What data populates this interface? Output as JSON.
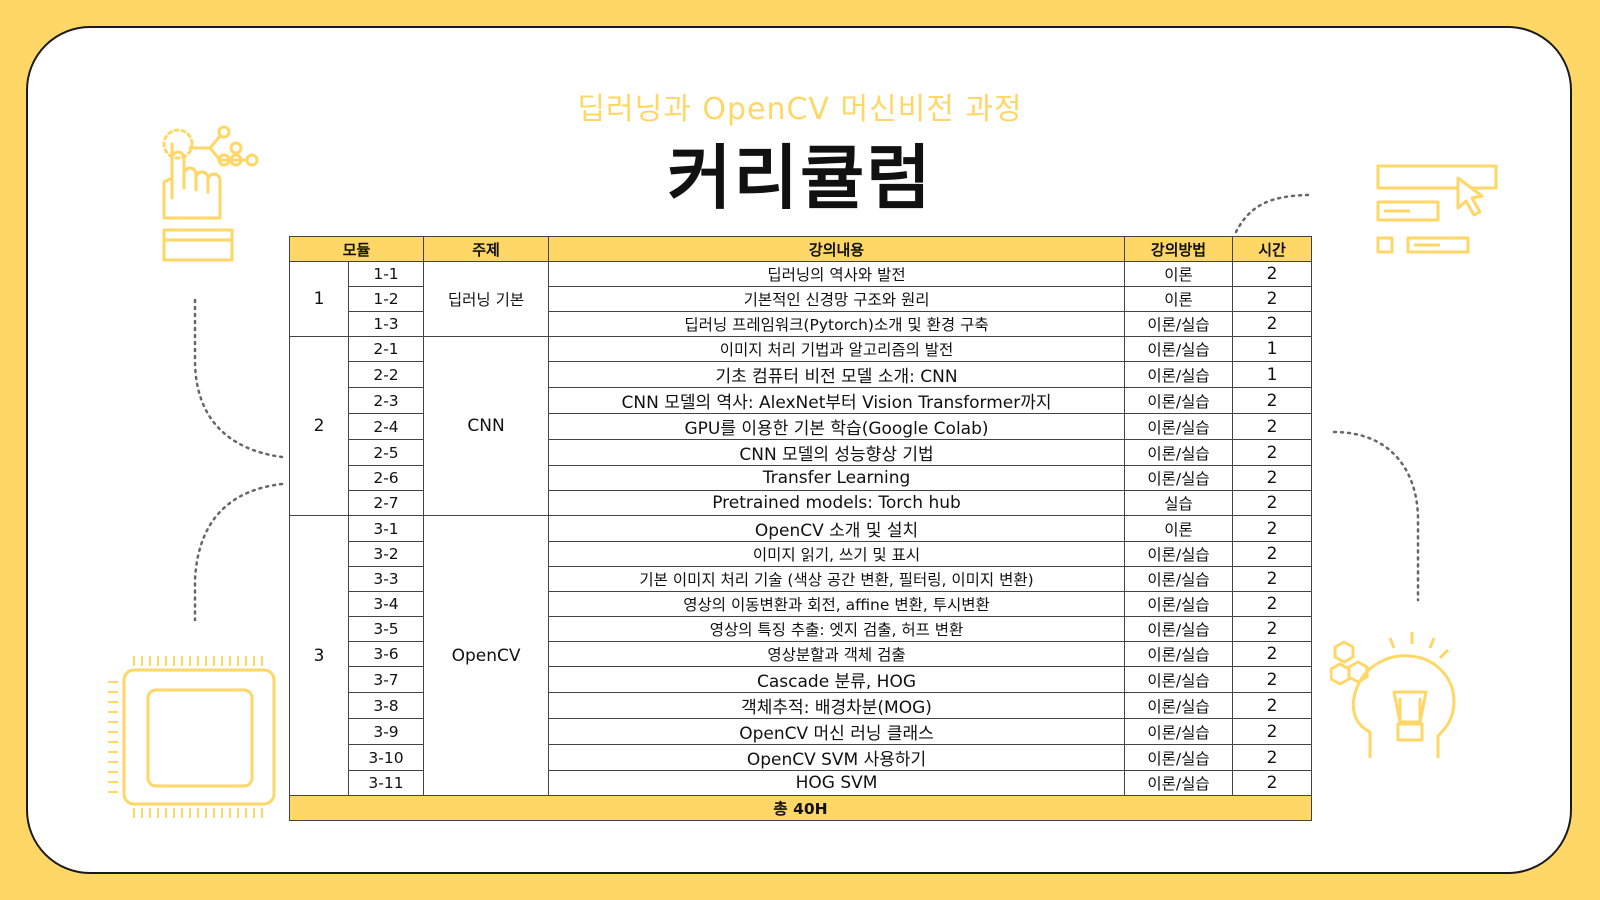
{
  "header": {
    "subtitle": "딥러닝과 OpenCV 머신비전 과정",
    "title": "커리큘럼"
  },
  "table": {
    "headers": {
      "module": "모듈",
      "topic": "주제",
      "content": "강의내용",
      "method": "강의방법",
      "hours": "시간"
    },
    "modules": [
      {
        "module": "1",
        "topic": "딥러닝 기본",
        "rows": [
          {
            "id": "1-1",
            "content": "딥러닝의 역사와 발전",
            "method": "이론",
            "hours": "2"
          },
          {
            "id": "1-2",
            "content": "기본적인 신경망 구조와 원리",
            "method": "이론",
            "hours": "2"
          },
          {
            "id": "1-3",
            "content": "딥러닝 프레임워크(Pytorch)소개 및 환경 구축",
            "method": "이론/실습",
            "hours": "2"
          }
        ]
      },
      {
        "module": "2",
        "topic": "CNN",
        "rows": [
          {
            "id": "2-1",
            "content": "이미지 처리 기법과 알고리즘의 발전",
            "method": "이론/실습",
            "hours": "1"
          },
          {
            "id": "2-2",
            "content": "기초 컴퓨터 비전 모델 소개: CNN",
            "method": "이론/실습",
            "hours": "1"
          },
          {
            "id": "2-3",
            "content": "CNN 모델의 역사: AlexNet부터 Vision Transformer까지",
            "method": "이론/실습",
            "hours": "2"
          },
          {
            "id": "2-4",
            "content": "GPU를 이용한 기본 학습(Google Colab)",
            "method": "이론/실습",
            "hours": "2"
          },
          {
            "id": "2-5",
            "content": "CNN 모델의 성능향상 기법",
            "method": "이론/실습",
            "hours": "2"
          },
          {
            "id": "2-6",
            "content": "Transfer Learning",
            "method": "이론/실습",
            "hours": "2"
          },
          {
            "id": "2-7",
            "content": "Pretrained models: Torch hub",
            "method": "실습",
            "hours": "2"
          }
        ]
      },
      {
        "module": "3",
        "topic": "OpenCV",
        "rows": [
          {
            "id": "3-1",
            "content": "OpenCV 소개 및 설치",
            "method": "이론",
            "hours": "2"
          },
          {
            "id": "3-2",
            "content": "이미지 읽기, 쓰기 및 표시",
            "method": "이론/실습",
            "hours": "2"
          },
          {
            "id": "3-3",
            "content": "기본 이미지 처리 기술 (색상 공간 변환, 필터링, 이미지 변환)",
            "method": "이론/실습",
            "hours": "2"
          },
          {
            "id": "3-4",
            "content": "영상의 이동변환과 회전, affine 변환, 투시변환",
            "method": "이론/실습",
            "hours": "2"
          },
          {
            "id": "3-5",
            "content": "영상의 특징 추출: 엣지 검출, 허프 변환",
            "method": "이론/실습",
            "hours": "2"
          },
          {
            "id": "3-6",
            "content": "영상분할과 객체 검출",
            "method": "이론/실습",
            "hours": "2"
          },
          {
            "id": "3-7",
            "content": "Cascade 분류, HOG",
            "method": "이론/실습",
            "hours": "2"
          },
          {
            "id": "3-8",
            "content": "객체추적: 배경차분(MOG)",
            "method": "이론/실습",
            "hours": "2"
          },
          {
            "id": "3-9",
            "content": "OpenCV 머신 러닝 클래스",
            "method": "이론/실습",
            "hours": "2"
          },
          {
            "id": "3-10",
            "content": "OpenCV SVM 사용하기",
            "method": "이론/실습",
            "hours": "2"
          },
          {
            "id": "3-11",
            "content": "HOG SVM",
            "method": "이론/실습",
            "hours": "2"
          }
        ]
      }
    ],
    "total": "총 40H"
  },
  "decorations": {
    "icons": [
      "hand-touch-icon",
      "flowchart-cursor-icon",
      "chip-icon",
      "lightbulb-head-icon"
    ],
    "accent_color": "#FFD766"
  }
}
